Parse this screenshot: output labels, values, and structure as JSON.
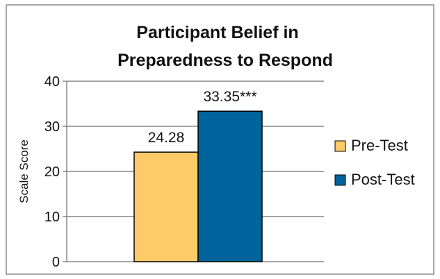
{
  "chart_data": {
    "type": "bar",
    "title_lines": [
      "Participant Belief in",
      "Preparedness to Respond"
    ],
    "ylabel": "Scale Score",
    "xlabel": "",
    "ylim": [
      0,
      40
    ],
    "yticks": [
      "0",
      "10",
      "20",
      "30",
      "40"
    ],
    "grid": true,
    "legend_position": "right",
    "series": [
      {
        "name": "Pre-Test",
        "value": 24.28,
        "label": "24.28",
        "color": "#FFCB69"
      },
      {
        "name": "Post-Test",
        "value": 33.35,
        "label": "33.35***",
        "color": "#00649C"
      }
    ]
  }
}
